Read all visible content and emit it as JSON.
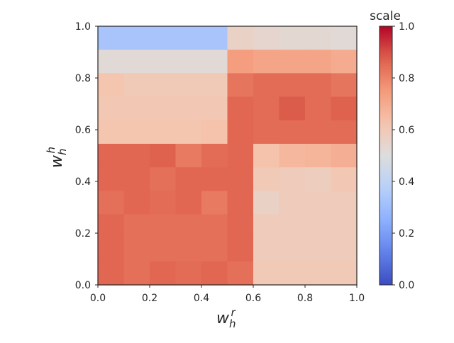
{
  "chart_data": {
    "type": "heatmap",
    "x_label_main": "w",
    "x_label_sub": "h",
    "x_label_sup": "r",
    "y_label_main": "w",
    "y_label_sub": "h",
    "y_label_sup": "h",
    "xlim": [
      0.0,
      1.0
    ],
    "ylim": [
      0.0,
      1.0
    ],
    "xticks": [
      "0.0",
      "0.2",
      "0.4",
      "0.6",
      "0.8",
      "1.0"
    ],
    "yticks": [
      "0.0",
      "0.2",
      "0.4",
      "0.6",
      "0.8",
      "1.0"
    ],
    "colorbar": {
      "title": "scale",
      "range": [
        0.0,
        1.0
      ],
      "ticks": [
        "0.0",
        "0.2",
        "0.4",
        "0.6",
        "0.8",
        "1.0"
      ],
      "colormap": "coolwarm"
    },
    "n_cols": 10,
    "n_rows": 11,
    "values_rows_top_to_bottom": [
      [
        0.33,
        0.33,
        0.33,
        0.33,
        0.33,
        0.56,
        0.54,
        0.53,
        0.53,
        0.52
      ],
      [
        0.52,
        0.52,
        0.52,
        0.52,
        0.52,
        0.74,
        0.72,
        0.72,
        0.72,
        0.7
      ],
      [
        0.62,
        0.6,
        0.6,
        0.6,
        0.6,
        0.83,
        0.85,
        0.85,
        0.85,
        0.83
      ],
      [
        0.61,
        0.61,
        0.61,
        0.61,
        0.61,
        0.86,
        0.85,
        0.88,
        0.85,
        0.87
      ],
      [
        0.62,
        0.62,
        0.62,
        0.62,
        0.63,
        0.86,
        0.85,
        0.85,
        0.85,
        0.85
      ],
      [
        0.86,
        0.86,
        0.87,
        0.82,
        0.85,
        0.86,
        0.63,
        0.66,
        0.67,
        0.69
      ],
      [
        0.86,
        0.86,
        0.84,
        0.86,
        0.86,
        0.86,
        0.6,
        0.59,
        0.58,
        0.61
      ],
      [
        0.84,
        0.86,
        0.85,
        0.86,
        0.82,
        0.86,
        0.56,
        0.59,
        0.59,
        0.59
      ],
      [
        0.86,
        0.84,
        0.84,
        0.84,
        0.84,
        0.86,
        0.59,
        0.59,
        0.59,
        0.59
      ],
      [
        0.86,
        0.84,
        0.84,
        0.84,
        0.84,
        0.86,
        0.59,
        0.59,
        0.59,
        0.59
      ],
      [
        0.86,
        0.84,
        0.86,
        0.85,
        0.86,
        0.84,
        0.6,
        0.6,
        0.6,
        0.6
      ]
    ]
  }
}
